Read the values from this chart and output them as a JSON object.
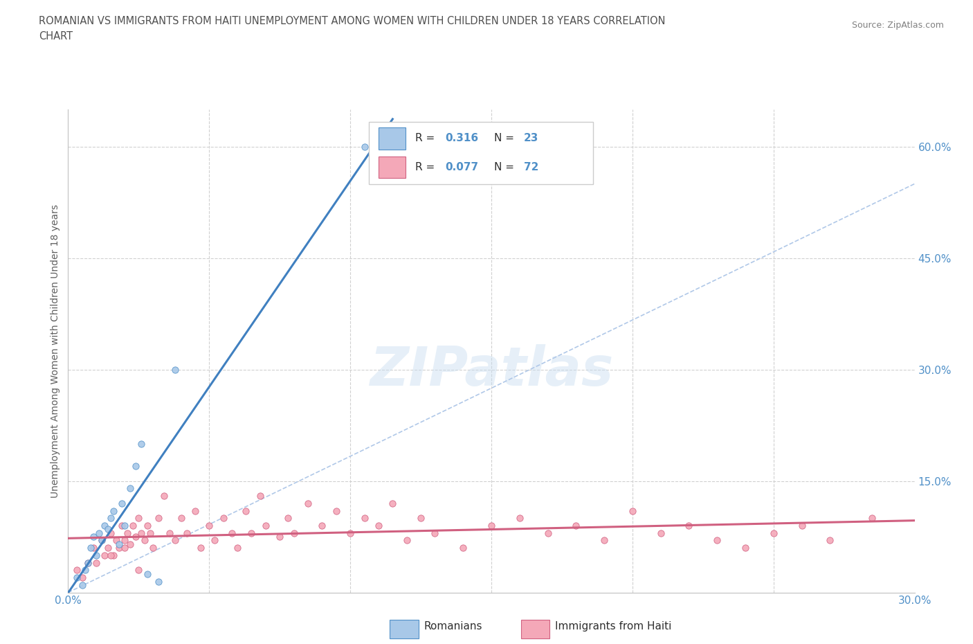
{
  "title_line1": "ROMANIAN VS IMMIGRANTS FROM HAITI UNEMPLOYMENT AMONG WOMEN WITH CHILDREN UNDER 18 YEARS CORRELATION",
  "title_line2": "CHART",
  "source_text": "Source: ZipAtlas.com",
  "ylabel": "Unemployment Among Women with Children Under 18 years",
  "xlim": [
    0.0,
    0.3
  ],
  "ylim": [
    0.0,
    0.65
  ],
  "xticks": [
    0.0,
    0.05,
    0.1,
    0.15,
    0.2,
    0.25,
    0.3
  ],
  "xticklabels": [
    "0.0%",
    "",
    "",
    "",
    "",
    "",
    "30.0%"
  ],
  "yticks": [
    0.0,
    0.15,
    0.3,
    0.45,
    0.6
  ],
  "yticklabels": [
    "",
    "15.0%",
    "30.0%",
    "45.0%",
    "60.0%"
  ],
  "romanian_color": "#a8c8e8",
  "haitian_color": "#f4a8b8",
  "romanian_edge": "#5090c8",
  "haitian_edge": "#d06080",
  "romanian_R": 0.316,
  "romanian_N": 23,
  "haitian_R": 0.077,
  "haitian_N": 72,
  "watermark": "ZIPatlas",
  "legend_romanian": "Romanians",
  "legend_haitian": "Immigrants from Haiti",
  "romanian_x": [
    0.003,
    0.005,
    0.006,
    0.007,
    0.008,
    0.009,
    0.01,
    0.011,
    0.012,
    0.013,
    0.014,
    0.015,
    0.016,
    0.018,
    0.019,
    0.02,
    0.022,
    0.024,
    0.026,
    0.028,
    0.032,
    0.038,
    0.105
  ],
  "romanian_y": [
    0.02,
    0.01,
    0.03,
    0.04,
    0.06,
    0.075,
    0.05,
    0.08,
    0.07,
    0.09,
    0.085,
    0.1,
    0.11,
    0.065,
    0.12,
    0.09,
    0.14,
    0.17,
    0.2,
    0.025,
    0.015,
    0.3,
    0.6
  ],
  "haitian_x": [
    0.003,
    0.005,
    0.007,
    0.009,
    0.01,
    0.012,
    0.013,
    0.014,
    0.015,
    0.016,
    0.017,
    0.018,
    0.019,
    0.02,
    0.021,
    0.022,
    0.023,
    0.024,
    0.025,
    0.026,
    0.027,
    0.028,
    0.029,
    0.03,
    0.032,
    0.034,
    0.036,
    0.038,
    0.04,
    0.042,
    0.045,
    0.047,
    0.05,
    0.052,
    0.055,
    0.058,
    0.06,
    0.063,
    0.065,
    0.068,
    0.07,
    0.075,
    0.078,
    0.08,
    0.085,
    0.09,
    0.095,
    0.1,
    0.105,
    0.11,
    0.115,
    0.12,
    0.125,
    0.13,
    0.14,
    0.15,
    0.16,
    0.17,
    0.18,
    0.19,
    0.2,
    0.21,
    0.22,
    0.23,
    0.24,
    0.25,
    0.26,
    0.27,
    0.285,
    0.015,
    0.02,
    0.025
  ],
  "haitian_y": [
    0.03,
    0.02,
    0.04,
    0.06,
    0.04,
    0.07,
    0.05,
    0.06,
    0.08,
    0.05,
    0.07,
    0.06,
    0.09,
    0.07,
    0.08,
    0.065,
    0.09,
    0.075,
    0.1,
    0.08,
    0.07,
    0.09,
    0.08,
    0.06,
    0.1,
    0.13,
    0.08,
    0.07,
    0.1,
    0.08,
    0.11,
    0.06,
    0.09,
    0.07,
    0.1,
    0.08,
    0.06,
    0.11,
    0.08,
    0.13,
    0.09,
    0.075,
    0.1,
    0.08,
    0.12,
    0.09,
    0.11,
    0.08,
    0.1,
    0.09,
    0.12,
    0.07,
    0.1,
    0.08,
    0.06,
    0.09,
    0.1,
    0.08,
    0.09,
    0.07,
    0.11,
    0.08,
    0.09,
    0.07,
    0.06,
    0.08,
    0.09,
    0.07,
    0.1,
    0.05,
    0.06,
    0.03
  ],
  "grid_color": "#d0d0d0",
  "background_color": "#ffffff",
  "title_color": "#505050",
  "axis_tick_color": "#5090c8",
  "trend_romanian_color": "#4080c0",
  "trend_haitian_color": "#d06080",
  "trend_ref_color": "#b0c8e8",
  "trend_ref_linestyle": "--"
}
